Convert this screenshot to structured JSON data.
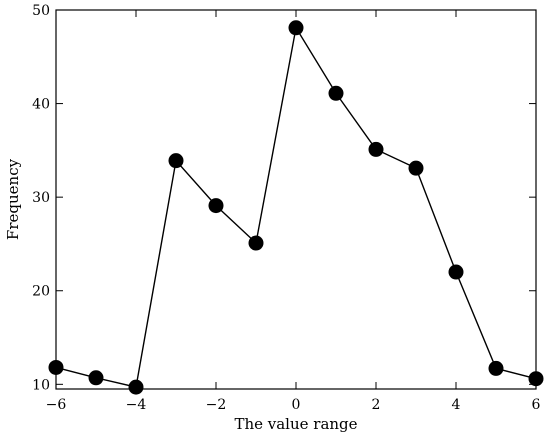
{
  "chart_data": {
    "type": "line",
    "title": "",
    "xlabel": "The value range",
    "ylabel": "Frequency",
    "xlim": [
      -6,
      6
    ],
    "ylim": [
      9.5,
      50
    ],
    "x_ticks": [
      -6,
      -4,
      -2,
      0,
      2,
      4,
      6
    ],
    "x_tick_labels": [
      "−6",
      "−4",
      "−2",
      "0",
      "2",
      "4",
      "6"
    ],
    "y_ticks": [
      10,
      20,
      30,
      40,
      50
    ],
    "y_tick_labels": [
      "10",
      "20",
      "30",
      "40",
      "50"
    ],
    "grid": false,
    "legend": "none",
    "series": [
      {
        "x": [
          -6,
          -5,
          -4,
          -3,
          -2,
          -1,
          0,
          1,
          2,
          3,
          4,
          5,
          6
        ],
        "y": [
          11.8,
          10.7,
          9.7,
          33.9,
          29.1,
          25.1,
          48.1,
          41.1,
          35.1,
          33.1,
          22.0,
          11.7,
          10.6
        ],
        "color": "#000000",
        "marker": "filled-circle"
      }
    ]
  }
}
